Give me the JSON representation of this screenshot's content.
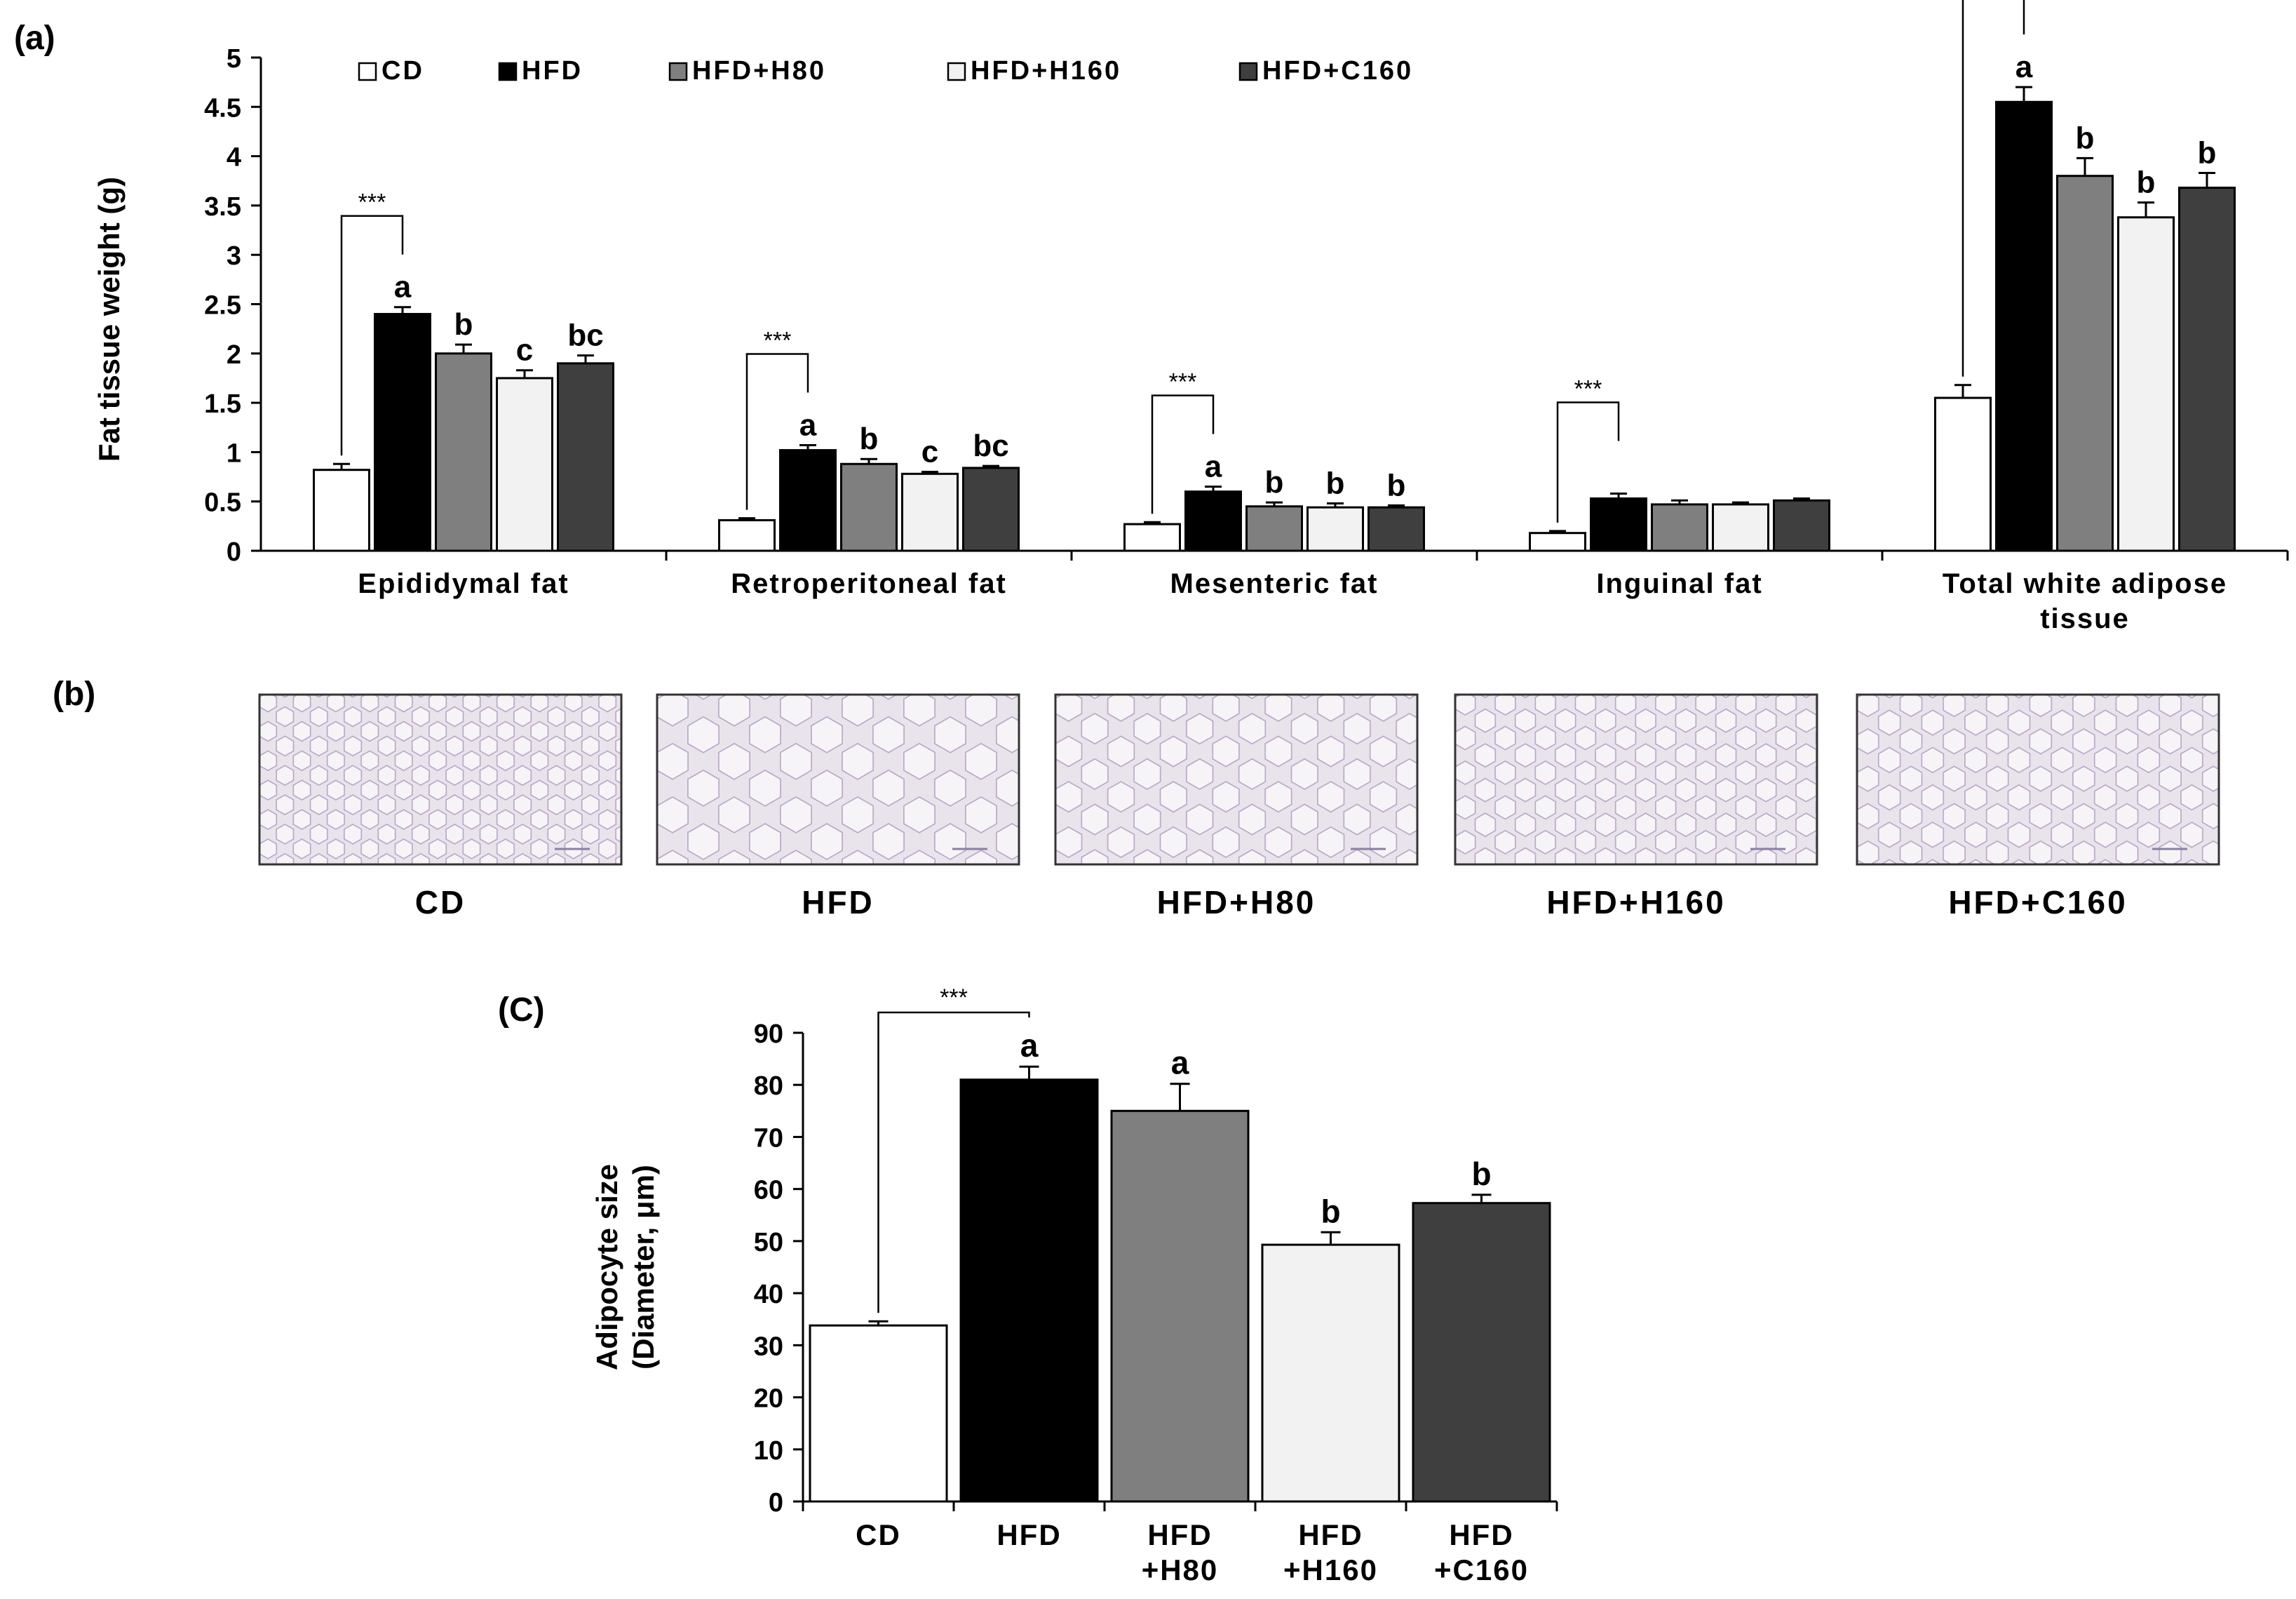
{
  "colors": {
    "CD": "#ffffff",
    "HFD": "#000000",
    "HFD+H80": "#7f7f7f",
    "HFD+H160": "#f2f2f2",
    "HFD+C160": "#3f3f3f",
    "axis": "#000000",
    "tissue_bg": "#e9e4ec",
    "tissue_line": "#b7a4c6"
  },
  "panel_b": {
    "label": "(b)",
    "images": [
      {
        "caption": "CD",
        "icon": "adipose-histology-micrograph",
        "cell_scale": 0.55
      },
      {
        "caption": "HFD",
        "icon": "adipose-histology-micrograph",
        "cell_scale": 1.0
      },
      {
        "caption": "HFD+H80",
        "icon": "adipose-histology-micrograph",
        "cell_scale": 0.85
      },
      {
        "caption": "HFD+H160",
        "icon": "adipose-histology-micrograph",
        "cell_scale": 0.65
      },
      {
        "caption": "HFD+C160",
        "icon": "adipose-histology-micrograph",
        "cell_scale": 0.7
      }
    ]
  },
  "chart_data": [
    {
      "panel_label": "(a)",
      "type": "bar",
      "title": "",
      "xlabel": "",
      "ylabel": "Fat tissue weight (g)",
      "ylim": [
        0,
        5
      ],
      "yticks": [
        "0",
        "0.5",
        "1",
        "1.5",
        "2",
        "2.5",
        "3",
        "3.5",
        "4",
        "4.5",
        "5"
      ],
      "grid": false,
      "legend_position": "top",
      "categories": [
        {
          "label_lines": [
            "Epididymal fat"
          ]
        },
        {
          "label_lines": [
            "Retroperitoneal fat"
          ]
        },
        {
          "label_lines": [
            "Mesenteric fat"
          ]
        },
        {
          "label_lines": [
            "Inguinal fat"
          ]
        },
        {
          "label_lines": [
            "Total white adipose",
            "tissue"
          ]
        }
      ],
      "series": [
        {
          "name": "CD",
          "values": [
            0.82,
            0.31,
            0.27,
            0.18,
            1.55
          ],
          "errors": [
            0.06,
            0.02,
            0.02,
            0.02,
            0.13
          ],
          "letters": [
            "",
            "",
            "",
            "",
            ""
          ]
        },
        {
          "name": "HFD",
          "values": [
            2.4,
            1.02,
            0.6,
            0.53,
            4.55
          ],
          "errors": [
            0.07,
            0.05,
            0.05,
            0.05,
            0.15
          ],
          "letters": [
            "a",
            "a",
            "a",
            "",
            "a"
          ]
        },
        {
          "name": "HFD+H80",
          "values": [
            2.0,
            0.88,
            0.45,
            0.47,
            3.8
          ],
          "errors": [
            0.09,
            0.05,
            0.04,
            0.04,
            0.18
          ],
          "letters": [
            "b",
            "b",
            "b",
            "",
            "b"
          ]
        },
        {
          "name": "HFD+H160",
          "values": [
            1.75,
            0.78,
            0.44,
            0.47,
            3.38
          ],
          "errors": [
            0.08,
            0.02,
            0.04,
            0.02,
            0.15
          ],
          "letters": [
            "c",
            "c",
            "b",
            "",
            "b"
          ]
        },
        {
          "name": "HFD+C160",
          "values": [
            1.9,
            0.84,
            0.44,
            0.51,
            3.68
          ],
          "errors": [
            0.08,
            0.02,
            0.02,
            0.02,
            0.15
          ],
          "letters": [
            "bc",
            "bc",
            "b",
            "",
            "b"
          ]
        }
      ],
      "annotations": [
        {
          "text": "***",
          "from": "CD",
          "to": "HFD",
          "category_index": 0
        },
        {
          "text": "***",
          "from": "CD",
          "to": "HFD",
          "category_index": 1
        },
        {
          "text": "***",
          "from": "CD",
          "to": "HFD",
          "category_index": 2
        },
        {
          "text": "***",
          "from": "CD",
          "to": "HFD",
          "category_index": 3
        },
        {
          "text": "***",
          "from": "CD",
          "to": "HFD",
          "category_index": 4
        }
      ]
    },
    {
      "panel_label": "(C)",
      "type": "bar",
      "title": "",
      "xlabel": "",
      "ylabel_lines": [
        "Adipocyte size",
        "(Diameter, μm)"
      ],
      "ylim": [
        0,
        90
      ],
      "yticks": [
        "0",
        "10",
        "20",
        "30",
        "40",
        "50",
        "60",
        "70",
        "80",
        "90"
      ],
      "grid": false,
      "categories": [
        {
          "label_lines": [
            "CD"
          ],
          "color_key": "CD"
        },
        {
          "label_lines": [
            "HFD"
          ],
          "color_key": "HFD"
        },
        {
          "label_lines": [
            "HFD",
            "+H80"
          ],
          "color_key": "HFD+H80"
        },
        {
          "label_lines": [
            "HFD",
            "+H160"
          ],
          "color_key": "HFD+H160"
        },
        {
          "label_lines": [
            "HFD",
            "+C160"
          ],
          "color_key": "HFD+C160"
        }
      ],
      "values": [
        33.8,
        81,
        75,
        49.3,
        57.3
      ],
      "errors": [
        0.8,
        2.5,
        5.2,
        2.4,
        1.6
      ],
      "letters": [
        "",
        "a",
        "a",
        "b",
        "b"
      ],
      "annotations": [
        {
          "text": "***",
          "from_index": 0,
          "to_index": 1
        }
      ]
    }
  ]
}
